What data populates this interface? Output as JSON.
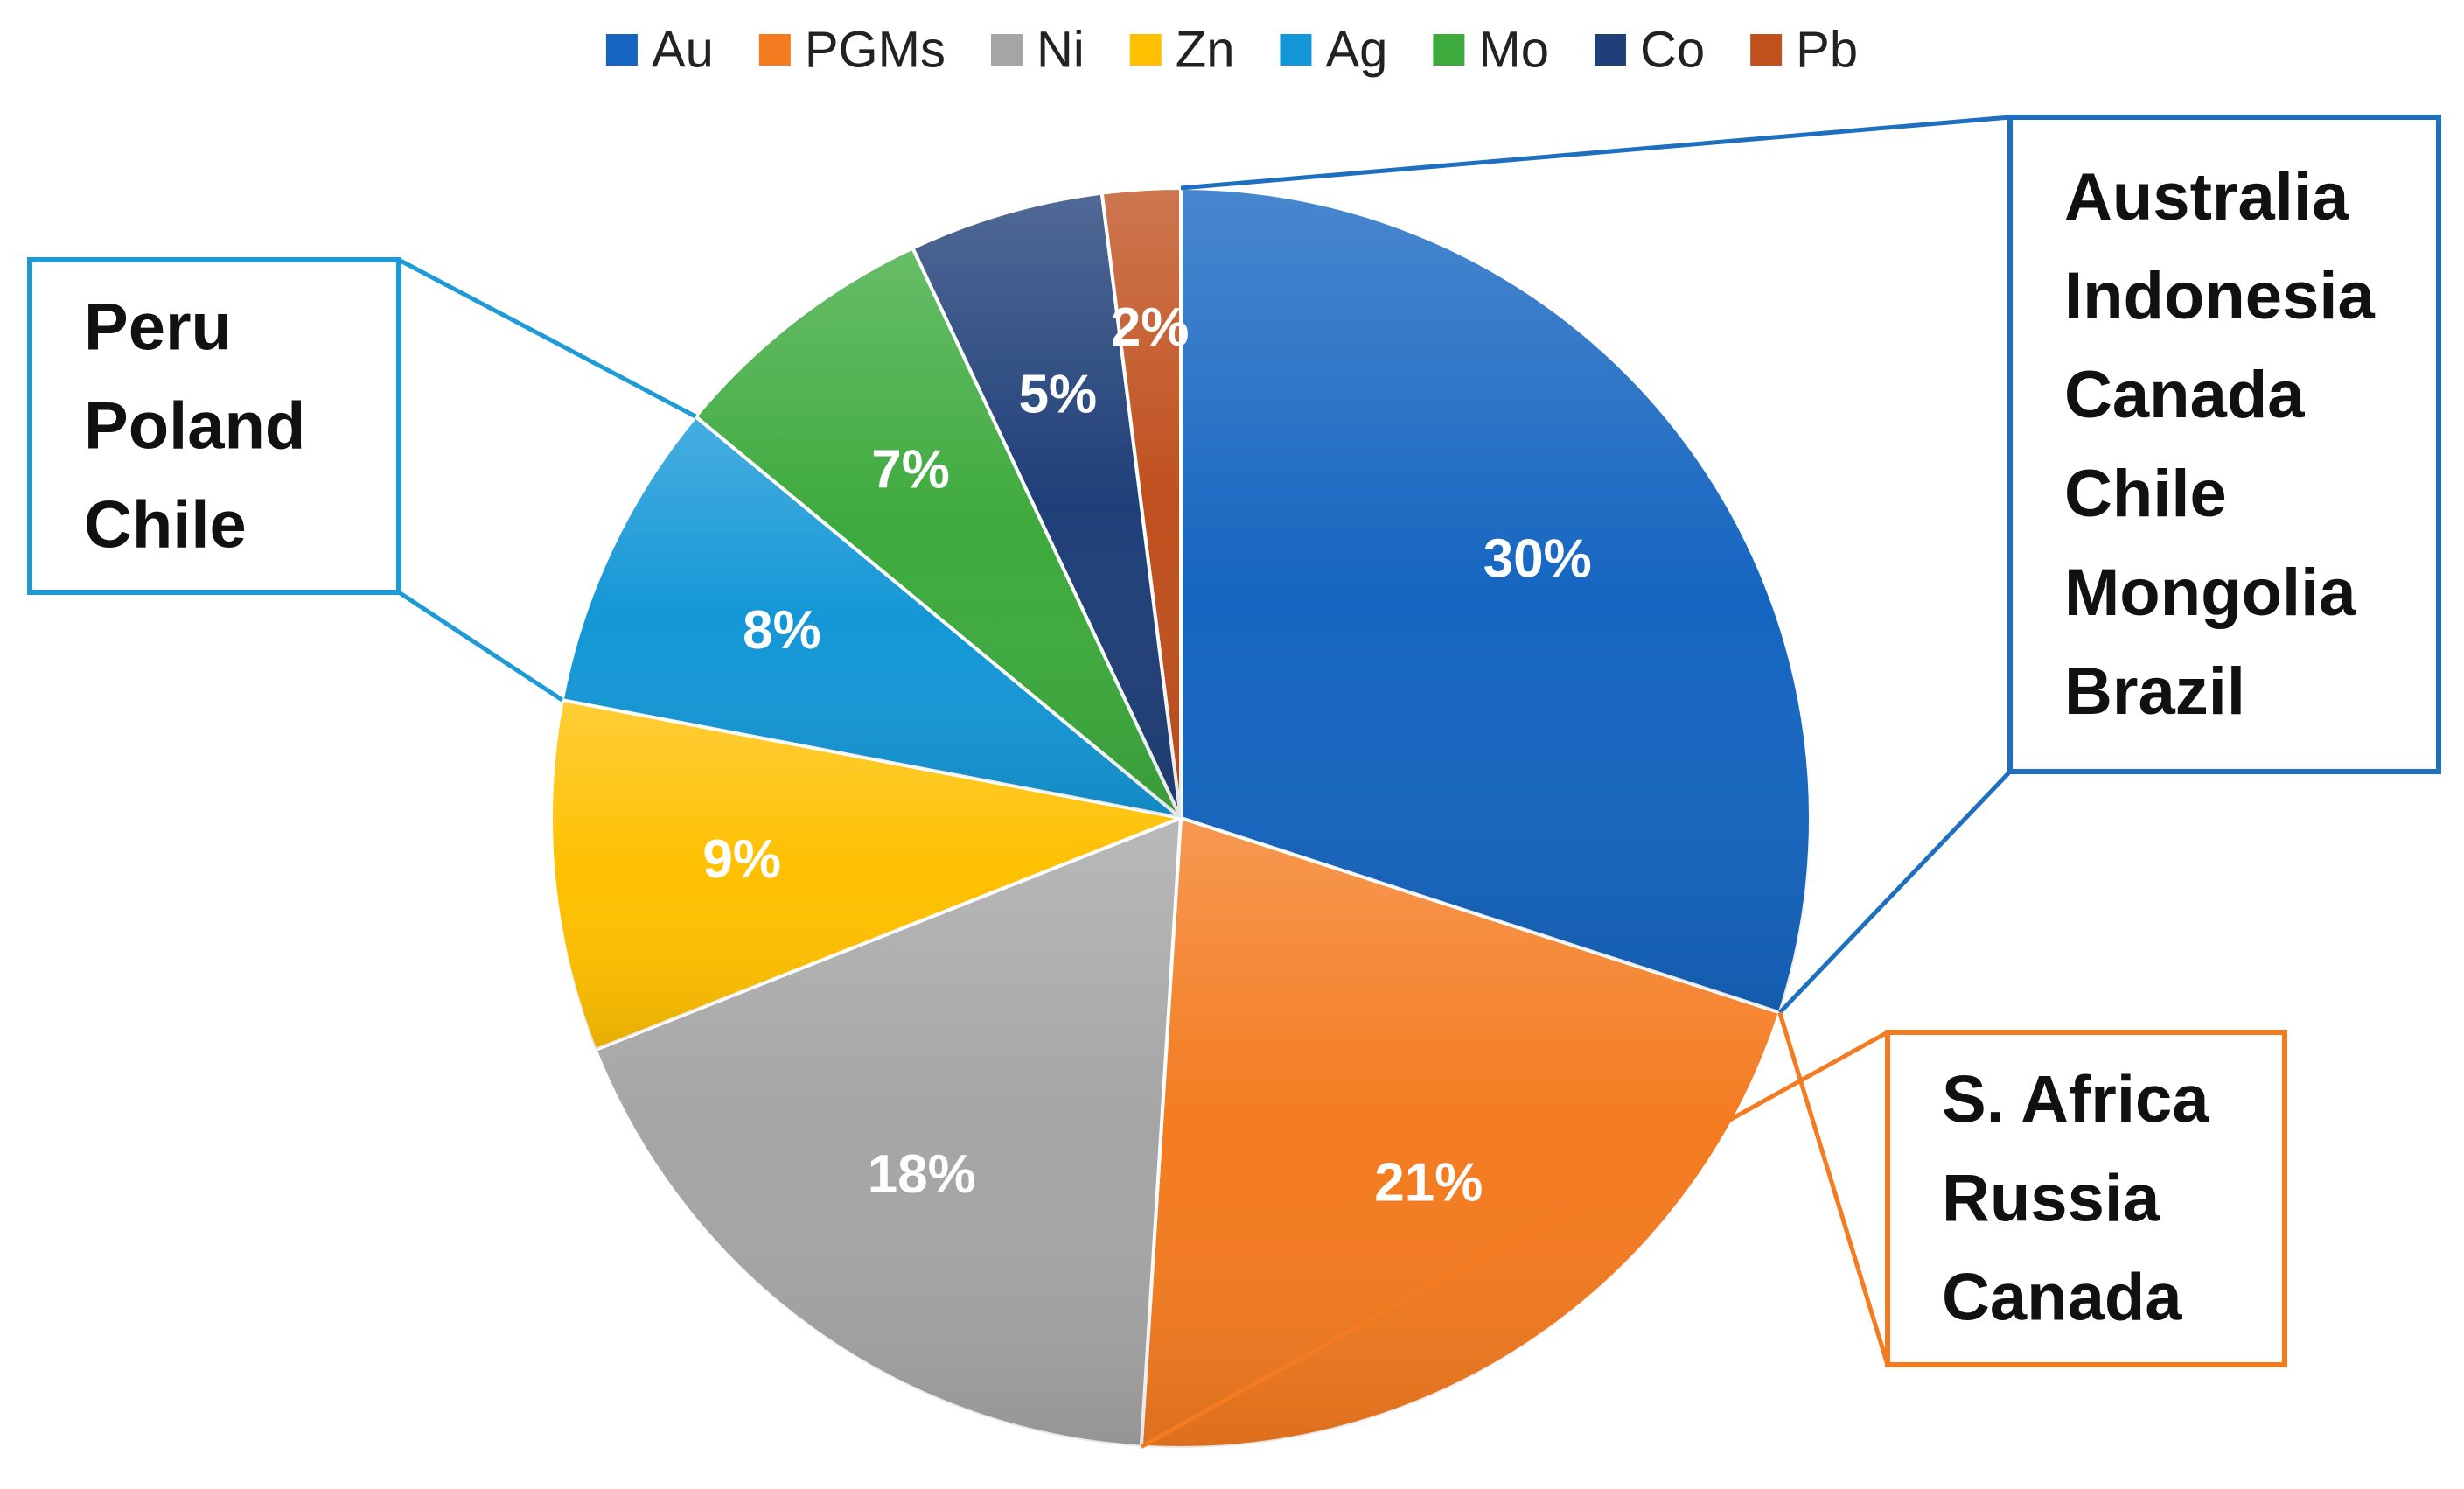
{
  "chart_data": {
    "type": "pie",
    "title": "",
    "legend_position": "top",
    "slices": [
      {
        "name": "Au",
        "value": 30,
        "label": "30%",
        "color": "#1565C0"
      },
      {
        "name": "PGMs",
        "value": 21,
        "label": "21%",
        "color": "#F47B20"
      },
      {
        "name": "Ni",
        "value": 18,
        "label": "18%",
        "color": "#A5A5A5"
      },
      {
        "name": "Zn",
        "value": 9,
        "label": "9%",
        "color": "#FFC000"
      },
      {
        "name": "Ag",
        "value": 8,
        "label": "8%",
        "color": "#1497D6"
      },
      {
        "name": "Mo",
        "value": 7,
        "label": "7%",
        "color": "#3DAA3D"
      },
      {
        "name": "Co",
        "value": 5,
        "label": "5%",
        "color": "#1F3F78"
      },
      {
        "name": "Pb",
        "value": 2,
        "label": "2%",
        "color": "#C0501E"
      }
    ],
    "callouts": [
      {
        "slice": "Au",
        "color": "#1F6FC0",
        "lines": [
          "Australia",
          "Indonesia",
          "Canada",
          "Chile",
          "Mongolia",
          "Brazil"
        ]
      },
      {
        "slice": "PGMs",
        "color": "#F47B20",
        "lines": [
          "S. Africa",
          "Russia",
          "Canada"
        ]
      },
      {
        "slice": "Ag",
        "color": "#1E9BD7",
        "lines": [
          "Peru",
          "Poland",
          "Chile"
        ]
      }
    ]
  }
}
